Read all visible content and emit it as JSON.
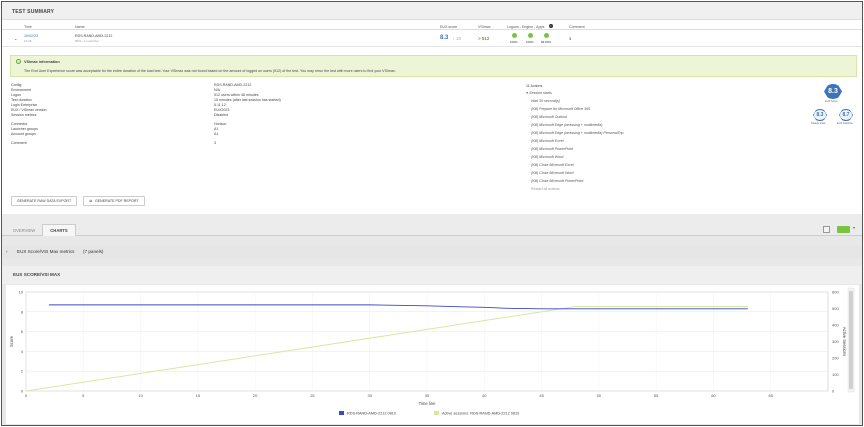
{
  "header": {
    "title": "TEST SUMMARY"
  },
  "table": {
    "columns": [
      "Time",
      "Name",
      "EUX score",
      "VSImax",
      "Logons - Engine - Apps",
      "Comment"
    ],
    "row": {
      "date": "10/02/23",
      "time": "13:26",
      "name": "RDS-RAND-AMD-2212",
      "sub": "RDS - 1 Launcher",
      "eux": "8.3",
      "eux_max": "10",
      "vsimax": "> 512",
      "logons_pct": "100%",
      "engine_pct": "100%",
      "apps_pct": "99.96%",
      "comment": "3"
    }
  },
  "vsi_info": {
    "title": "VSImax information",
    "desc": "The End User Experience score was acceptable for the entire duration of the load test. Your VSImax was not found based on the amount of logged on users (512) of the test. You may rerun the test with more users to find your VSImax."
  },
  "details": {
    "left_labels": [
      "Config",
      "Environment",
      "Logon",
      "Test duration",
      "Login Enterprise",
      "EUX / VSImax version",
      "Session metrics",
      "Connector",
      "Launcher groups",
      "Account groups",
      "Comment"
    ],
    "right_values": [
      "RDS-RAND-AMD-2212",
      "N/A",
      "512 users within 48 minutes",
      "15 minutes (after last session has started)",
      "5.11.12",
      "EUX2023",
      "Disabled",
      "Horizon",
      "A1",
      "A1",
      "3"
    ]
  },
  "actions": {
    "title": "11 Actions",
    "items": [
      "Session starts",
      "Wait 30 second(s)",
      "(Kill) Prepare for Microsoft Office 365",
      "(Kill) Microsoft Outlook",
      "(Kill) Microsoft Edge (browsing + multimedia)",
      "(Kill) Microsoft Edge (browsing + multimedia) PersonalTrip",
      "(Kill) Microsoft Excel",
      "(Kill) Microsoft PowerPoint",
      "(Kill) Microsoft Word",
      "(Kill) Close Microsoft Excel",
      "(Kill) Close Microsoft Word",
      "(Kill) Close Microsoft PowerPoint",
      "Restart all actions"
    ]
  },
  "badges": {
    "main": "8.3",
    "main_label": "EUX Score",
    "steady": "8.3",
    "steady_label": "Steady state",
    "baseline": "8.7",
    "baseline_label": "EUX baseline"
  },
  "buttons": {
    "raw": "GENERATE RAW DATA EXPORT",
    "pdf": "GENERATE PDF REPORT"
  },
  "tabs": [
    "OVERVIEW",
    "CHARTS"
  ],
  "panels": {
    "group": "EUX Score/VSI Max metrics",
    "count": "(7 panels)",
    "chart_title": "EUX SCORE/VSI MAX"
  },
  "colors": {
    "eux_line": "#3b47c8",
    "sessions_line": "#d7e8a0",
    "accent_green": "#7cc243",
    "badge_blue": "#3d74b8"
  },
  "chart_data": {
    "type": "line",
    "xlabel": "Time line",
    "ylabel": "Score",
    "y2label": "Active Sessions",
    "xlim": [
      0,
      70
    ],
    "ylim": [
      0,
      10
    ],
    "y2lim": [
      0,
      600
    ],
    "x_ticks": [
      0,
      5,
      10,
      15,
      20,
      25,
      30,
      35,
      40,
      45,
      50,
      55,
      60,
      65
    ],
    "y_ticks": [
      0,
      2,
      4,
      6,
      8,
      10
    ],
    "y2_ticks": [
      0,
      100,
      200,
      300,
      400,
      500,
      600
    ],
    "series": [
      {
        "name": "RDS-RAND-AMD-2212 0810",
        "axis": "left",
        "x": [
          2,
          5,
          10,
          15,
          20,
          25,
          30,
          35,
          38,
          40,
          42,
          45,
          48,
          50,
          55,
          60,
          63
        ],
        "y": [
          8.7,
          8.7,
          8.7,
          8.7,
          8.7,
          8.7,
          8.7,
          8.6,
          8.5,
          8.45,
          8.35,
          8.3,
          8.3,
          8.3,
          8.3,
          8.3,
          8.3
        ]
      },
      {
        "name": "Active sessions: RDS-RAND-AMD-2212 0810",
        "axis": "right",
        "x": [
          0,
          48,
          63
        ],
        "y": [
          0,
          512,
          512
        ]
      }
    ],
    "legend": "bottom"
  }
}
